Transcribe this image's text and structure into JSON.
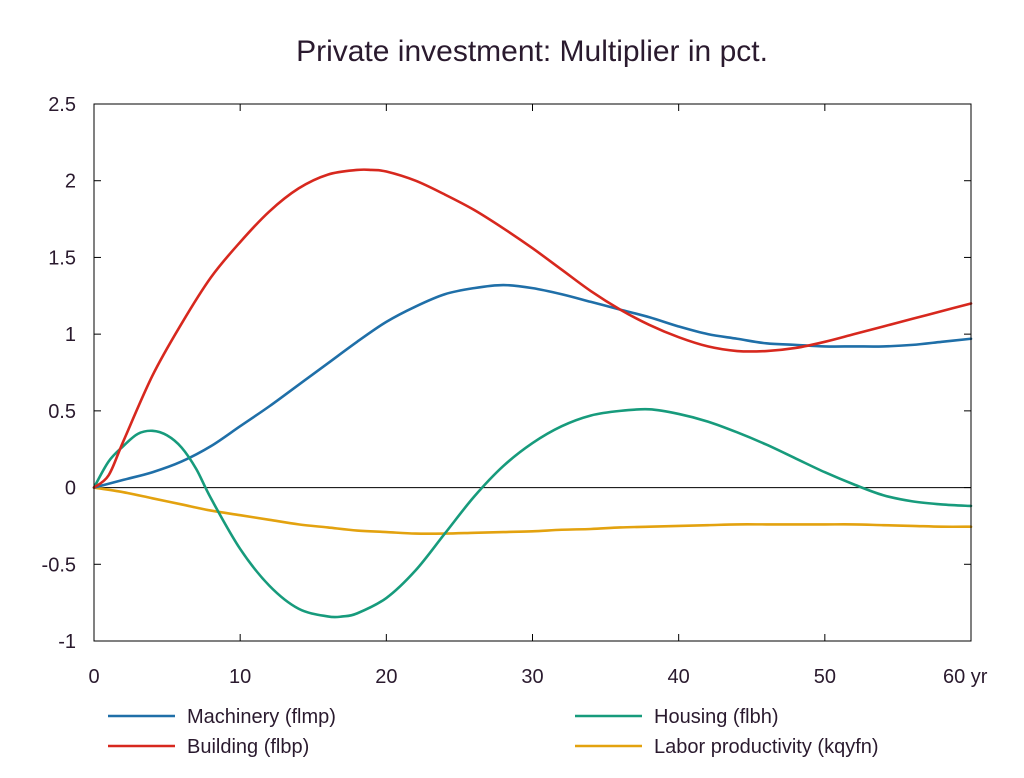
{
  "chart_data": {
    "type": "line",
    "title": "Private investment: Multiplier in pct.",
    "xlabel": "",
    "ylabel": "",
    "xlim": [
      0,
      60
    ],
    "ylim": [
      -1,
      2.5
    ],
    "x_ticks": [
      0,
      10,
      20,
      30,
      40,
      50,
      60
    ],
    "x_tick_labels": [
      "0",
      "10",
      "20",
      "30",
      "40",
      "50",
      "60 yr"
    ],
    "y_ticks": [
      -1,
      -0.5,
      0,
      0.5,
      1,
      1.5,
      2,
      2.5
    ],
    "y_tick_labels": [
      "-1",
      "-0.5",
      "0",
      "0.5",
      "1",
      "1.5",
      "2",
      "2.5"
    ],
    "legend_placement": "bottom",
    "series": [
      {
        "name": "Machinery (flmp)",
        "color": "#1f6fa8",
        "x": [
          0,
          2,
          4,
          6,
          8,
          10,
          12,
          14,
          16,
          18,
          20,
          22,
          24,
          26,
          28,
          30,
          32,
          34,
          36,
          38,
          40,
          42,
          44,
          46,
          48,
          50,
          52,
          54,
          56,
          58,
          60
        ],
        "y": [
          0,
          0.05,
          0.1,
          0.17,
          0.27,
          0.4,
          0.53,
          0.67,
          0.81,
          0.95,
          1.08,
          1.18,
          1.26,
          1.3,
          1.32,
          1.3,
          1.26,
          1.21,
          1.16,
          1.11,
          1.05,
          1.0,
          0.97,
          0.94,
          0.93,
          0.92,
          0.92,
          0.92,
          0.93,
          0.95,
          0.97
        ]
      },
      {
        "name": "Building (flbp)",
        "color": "#d7281e",
        "x": [
          0,
          1,
          2,
          4,
          6,
          8,
          10,
          12,
          14,
          16,
          18,
          19,
          20,
          22,
          24,
          26,
          28,
          30,
          32,
          34,
          36,
          38,
          40,
          42,
          44,
          46,
          48,
          50,
          52,
          54,
          56,
          58,
          60
        ],
        "y": [
          0,
          0.08,
          0.3,
          0.73,
          1.07,
          1.37,
          1.6,
          1.8,
          1.95,
          2.04,
          2.07,
          2.07,
          2.06,
          2.0,
          1.91,
          1.81,
          1.69,
          1.56,
          1.42,
          1.28,
          1.16,
          1.06,
          0.98,
          0.92,
          0.89,
          0.89,
          0.91,
          0.95,
          1.0,
          1.05,
          1.1,
          1.15,
          1.2
        ]
      },
      {
        "name": "Housing (flbh)",
        "color": "#179b7c",
        "x": [
          0,
          1,
          2,
          3,
          4,
          5,
          6,
          7,
          8,
          10,
          12,
          14,
          16,
          17,
          18,
          20,
          22,
          24,
          26,
          28,
          30,
          32,
          34,
          36,
          38,
          40,
          42,
          44,
          46,
          48,
          50,
          52,
          54,
          56,
          58,
          60
        ],
        "y": [
          0,
          0.17,
          0.27,
          0.35,
          0.37,
          0.34,
          0.26,
          0.12,
          -0.07,
          -0.4,
          -0.64,
          -0.79,
          -0.84,
          -0.84,
          -0.82,
          -0.72,
          -0.54,
          -0.3,
          -0.06,
          0.14,
          0.29,
          0.4,
          0.47,
          0.5,
          0.51,
          0.48,
          0.43,
          0.36,
          0.28,
          0.19,
          0.1,
          0.02,
          -0.05,
          -0.09,
          -0.11,
          -0.12
        ]
      },
      {
        "name": "Labor productivity (kqyfn)",
        "color": "#e3a20f",
        "x": [
          0,
          2,
          4,
          6,
          8,
          10,
          12,
          14,
          16,
          18,
          20,
          22,
          24,
          26,
          28,
          30,
          32,
          34,
          36,
          38,
          40,
          42,
          44,
          46,
          48,
          50,
          52,
          54,
          56,
          58,
          60
        ],
        "y": [
          0,
          -0.03,
          -0.07,
          -0.11,
          -0.15,
          -0.18,
          -0.21,
          -0.24,
          -0.26,
          -0.28,
          -0.29,
          -0.3,
          -0.3,
          -0.295,
          -0.29,
          -0.285,
          -0.275,
          -0.27,
          -0.26,
          -0.255,
          -0.25,
          -0.245,
          -0.24,
          -0.24,
          -0.24,
          -0.24,
          -0.24,
          -0.245,
          -0.25,
          -0.255,
          -0.255
        ]
      }
    ]
  }
}
